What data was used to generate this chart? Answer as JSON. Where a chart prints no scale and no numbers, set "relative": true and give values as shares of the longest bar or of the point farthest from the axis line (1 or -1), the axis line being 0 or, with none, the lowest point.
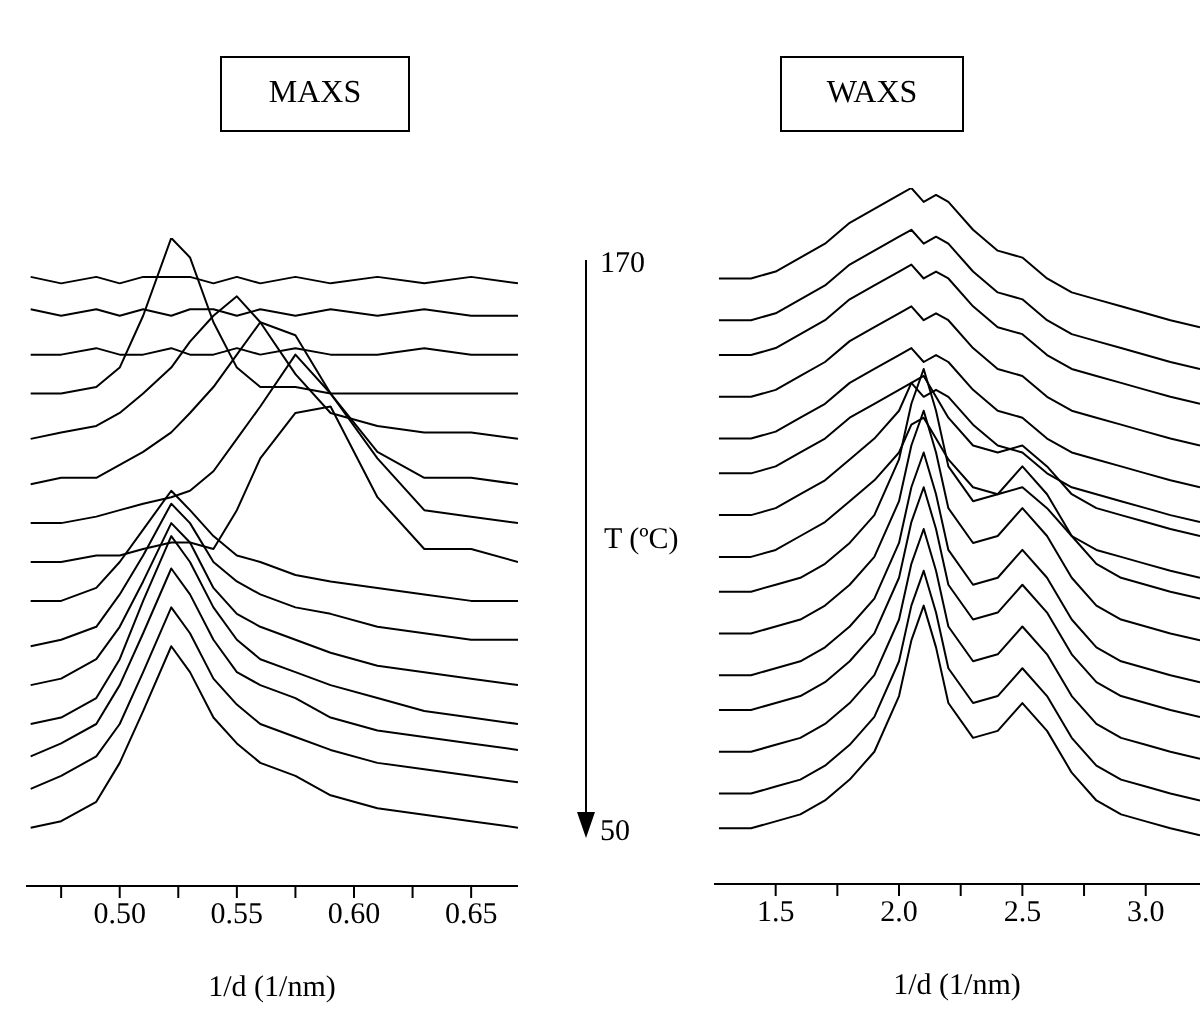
{
  "chart_data": [
    {
      "type": "line",
      "title": "MAXS",
      "xlabel": "1/d (1/nm)",
      "relative": true,
      "xlim": [
        0.46,
        0.67
      ],
      "xticks": [
        {
          "value": 0.475,
          "label": null
        },
        {
          "value": 0.5,
          "label": "0.50"
        },
        {
          "value": 0.525,
          "label": null
        },
        0.55,
        {
          "value": 0.575,
          "label": null
        },
        {
          "value": 0.6,
          "label": "0.60"
        },
        {
          "value": 0.625,
          "label": null
        },
        0.65
      ],
      "annotations": [
        "170",
        "T (ºC)",
        "50"
      ],
      "x": [
        0.462,
        0.475,
        0.49,
        0.5,
        0.51,
        0.522,
        0.53,
        0.54,
        0.55,
        0.56,
        0.575,
        0.59,
        0.61,
        0.63,
        0.65,
        0.67
      ],
      "series": [
        {
          "color": "#000000",
          "values": [
            0.94,
            0.93,
            0.94,
            0.93,
            0.94,
            0.94,
            0.94,
            0.93,
            0.94,
            0.93,
            0.94,
            0.93,
            0.94,
            0.93,
            0.94,
            0.93
          ]
        },
        {
          "color": "#000000",
          "values": [
            0.89,
            0.88,
            0.89,
            0.88,
            0.89,
            0.88,
            0.89,
            0.89,
            0.88,
            0.89,
            0.88,
            0.89,
            0.88,
            0.89,
            0.88,
            0.88
          ]
        },
        {
          "color": "#000000",
          "values": [
            0.82,
            0.82,
            0.83,
            0.82,
            0.82,
            0.83,
            0.82,
            0.82,
            0.83,
            0.82,
            0.83,
            0.82,
            0.82,
            0.83,
            0.82,
            0.82
          ]
        },
        {
          "color": "#000000",
          "values": [
            0.76,
            0.76,
            0.77,
            0.8,
            0.88,
            1.0,
            0.97,
            0.87,
            0.8,
            0.77,
            0.77,
            0.76,
            0.76,
            0.76,
            0.76,
            0.76
          ]
        },
        {
          "color": "#000000",
          "values": [
            0.69,
            0.7,
            0.71,
            0.73,
            0.76,
            0.8,
            0.84,
            0.88,
            0.91,
            0.87,
            0.79,
            0.73,
            0.71,
            0.7,
            0.7,
            0.69
          ]
        },
        {
          "color": "#000000",
          "values": [
            0.62,
            0.63,
            0.63,
            0.65,
            0.67,
            0.7,
            0.73,
            0.77,
            0.82,
            0.87,
            0.85,
            0.76,
            0.67,
            0.63,
            0.63,
            0.62
          ]
        },
        {
          "color": "#000000",
          "values": [
            0.56,
            0.56,
            0.57,
            0.58,
            0.59,
            0.6,
            0.61,
            0.64,
            0.69,
            0.74,
            0.82,
            0.76,
            0.66,
            0.58,
            0.57,
            0.56
          ]
        },
        {
          "color": "#000000",
          "values": [
            0.5,
            0.5,
            0.51,
            0.51,
            0.52,
            0.53,
            0.53,
            0.52,
            0.58,
            0.66,
            0.73,
            0.74,
            0.6,
            0.52,
            0.52,
            0.5
          ]
        },
        {
          "color": "#000000",
          "values": [
            0.44,
            0.44,
            0.46,
            0.5,
            0.55,
            0.61,
            0.58,
            0.54,
            0.51,
            0.5,
            0.48,
            0.47,
            0.46,
            0.45,
            0.44,
            0.44
          ]
        },
        {
          "color": "#000000",
          "values": [
            0.37,
            0.38,
            0.4,
            0.45,
            0.51,
            0.59,
            0.56,
            0.5,
            0.47,
            0.45,
            0.43,
            0.42,
            0.4,
            0.39,
            0.38,
            0.38
          ]
        },
        {
          "color": "#000000",
          "values": [
            0.31,
            0.32,
            0.35,
            0.4,
            0.47,
            0.56,
            0.53,
            0.46,
            0.42,
            0.4,
            0.38,
            0.36,
            0.34,
            0.33,
            0.32,
            0.31
          ]
        },
        {
          "color": "#000000",
          "values": [
            0.25,
            0.26,
            0.29,
            0.35,
            0.44,
            0.54,
            0.5,
            0.43,
            0.38,
            0.35,
            0.33,
            0.31,
            0.29,
            0.27,
            0.26,
            0.25
          ]
        },
        {
          "color": "#000000",
          "values": [
            0.2,
            0.22,
            0.25,
            0.31,
            0.39,
            0.49,
            0.45,
            0.38,
            0.33,
            0.31,
            0.29,
            0.26,
            0.24,
            0.23,
            0.22,
            0.21
          ]
        },
        {
          "color": "#000000",
          "values": [
            0.15,
            0.17,
            0.2,
            0.25,
            0.33,
            0.43,
            0.39,
            0.32,
            0.28,
            0.25,
            0.23,
            0.21,
            0.19,
            0.18,
            0.17,
            0.16
          ]
        },
        {
          "color": "#000000",
          "values": [
            0.09,
            0.1,
            0.13,
            0.19,
            0.27,
            0.37,
            0.33,
            0.26,
            0.22,
            0.19,
            0.17,
            0.14,
            0.12,
            0.11,
            0.1,
            0.09
          ]
        }
      ]
    },
    {
      "type": "line",
      "title": "WAXS",
      "xlabel": "1/d (1/nm)",
      "relative": true,
      "xlim": [
        1.25,
        3.22
      ],
      "xticks": [
        1.5,
        {
          "value": 1.75,
          "label": null
        },
        {
          "value": 2.0,
          "label": "2.0"
        },
        {
          "value": 2.25,
          "label": null
        },
        2.5,
        {
          "value": 2.75,
          "label": null
        },
        {
          "value": 3.0,
          "label": "3.0"
        }
      ],
      "x": [
        1.27,
        1.4,
        1.5,
        1.6,
        1.7,
        1.8,
        1.9,
        2.0,
        2.05,
        2.1,
        2.15,
        2.2,
        2.3,
        2.4,
        2.5,
        2.6,
        2.7,
        2.8,
        2.9,
        3.0,
        3.1,
        3.22
      ],
      "series": [
        {
          "color": "#000000",
          "values": [
            0.87,
            0.87,
            0.88,
            0.9,
            0.92,
            0.95,
            0.97,
            0.99,
            1.0,
            0.98,
            0.99,
            0.98,
            0.94,
            0.91,
            0.9,
            0.87,
            0.85,
            0.84,
            0.83,
            0.82,
            0.81,
            0.8
          ]
        },
        {
          "color": "#000000",
          "values": [
            0.81,
            0.81,
            0.82,
            0.84,
            0.86,
            0.89,
            0.91,
            0.93,
            0.94,
            0.92,
            0.93,
            0.92,
            0.88,
            0.85,
            0.84,
            0.81,
            0.79,
            0.78,
            0.77,
            0.76,
            0.75,
            0.74
          ]
        },
        {
          "color": "#000000",
          "values": [
            0.76,
            0.76,
            0.77,
            0.79,
            0.81,
            0.84,
            0.86,
            0.88,
            0.89,
            0.87,
            0.88,
            0.87,
            0.83,
            0.8,
            0.79,
            0.76,
            0.74,
            0.73,
            0.72,
            0.71,
            0.7,
            0.69
          ]
        },
        {
          "color": "#000000",
          "values": [
            0.7,
            0.7,
            0.71,
            0.73,
            0.75,
            0.78,
            0.8,
            0.82,
            0.83,
            0.81,
            0.82,
            0.81,
            0.77,
            0.74,
            0.73,
            0.7,
            0.68,
            0.67,
            0.66,
            0.65,
            0.64,
            0.63
          ]
        },
        {
          "color": "#000000",
          "values": [
            0.64,
            0.64,
            0.65,
            0.67,
            0.69,
            0.72,
            0.74,
            0.76,
            0.77,
            0.75,
            0.76,
            0.75,
            0.71,
            0.68,
            0.67,
            0.64,
            0.62,
            0.61,
            0.6,
            0.59,
            0.58,
            0.57
          ]
        },
        {
          "color": "#000000",
          "values": [
            0.59,
            0.59,
            0.6,
            0.62,
            0.64,
            0.67,
            0.69,
            0.71,
            0.72,
            0.7,
            0.71,
            0.7,
            0.66,
            0.63,
            0.62,
            0.59,
            0.57,
            0.56,
            0.55,
            0.54,
            0.53,
            0.52
          ]
        },
        {
          "color": "#000000",
          "values": [
            0.53,
            0.53,
            0.54,
            0.56,
            0.58,
            0.61,
            0.64,
            0.68,
            0.72,
            0.73,
            0.7,
            0.67,
            0.63,
            0.62,
            0.63,
            0.6,
            0.56,
            0.54,
            0.53,
            0.52,
            0.51,
            0.5
          ]
        },
        {
          "color": "#000000",
          "values": [
            0.47,
            0.47,
            0.48,
            0.5,
            0.52,
            0.55,
            0.58,
            0.62,
            0.66,
            0.67,
            0.64,
            0.61,
            0.57,
            0.56,
            0.57,
            0.54,
            0.5,
            0.48,
            0.47,
            0.46,
            0.45,
            0.44
          ]
        },
        {
          "color": "#000000",
          "values": [
            0.42,
            0.42,
            0.43,
            0.44,
            0.46,
            0.49,
            0.53,
            0.61,
            0.69,
            0.74,
            0.68,
            0.6,
            0.55,
            0.56,
            0.6,
            0.56,
            0.5,
            0.46,
            0.44,
            0.43,
            0.42,
            0.41
          ]
        },
        {
          "color": "#000000",
          "values": [
            0.36,
            0.36,
            0.37,
            0.38,
            0.4,
            0.43,
            0.47,
            0.55,
            0.63,
            0.68,
            0.62,
            0.54,
            0.49,
            0.5,
            0.54,
            0.5,
            0.44,
            0.4,
            0.38,
            0.37,
            0.36,
            0.35
          ]
        },
        {
          "color": "#000000",
          "values": [
            0.3,
            0.3,
            0.31,
            0.32,
            0.34,
            0.37,
            0.41,
            0.49,
            0.57,
            0.62,
            0.56,
            0.48,
            0.43,
            0.44,
            0.48,
            0.44,
            0.38,
            0.34,
            0.32,
            0.31,
            0.3,
            0.29
          ]
        },
        {
          "color": "#000000",
          "values": [
            0.25,
            0.25,
            0.26,
            0.27,
            0.29,
            0.32,
            0.36,
            0.44,
            0.52,
            0.57,
            0.51,
            0.43,
            0.38,
            0.39,
            0.43,
            0.39,
            0.33,
            0.29,
            0.27,
            0.26,
            0.25,
            0.24
          ]
        },
        {
          "color": "#000000",
          "values": [
            0.19,
            0.19,
            0.2,
            0.21,
            0.23,
            0.26,
            0.3,
            0.38,
            0.46,
            0.51,
            0.45,
            0.37,
            0.32,
            0.33,
            0.37,
            0.33,
            0.27,
            0.23,
            0.21,
            0.2,
            0.19,
            0.18
          ]
        },
        {
          "color": "#000000",
          "values": [
            0.13,
            0.13,
            0.14,
            0.15,
            0.17,
            0.2,
            0.24,
            0.32,
            0.4,
            0.45,
            0.39,
            0.31,
            0.26,
            0.27,
            0.31,
            0.27,
            0.21,
            0.17,
            0.15,
            0.14,
            0.13,
            0.12
          ]
        },
        {
          "color": "#000000",
          "values": [
            0.08,
            0.08,
            0.09,
            0.1,
            0.12,
            0.15,
            0.19,
            0.27,
            0.35,
            0.4,
            0.34,
            0.26,
            0.21,
            0.22,
            0.26,
            0.22,
            0.16,
            0.12,
            0.1,
            0.09,
            0.08,
            0.07
          ]
        }
      ]
    }
  ]
}
